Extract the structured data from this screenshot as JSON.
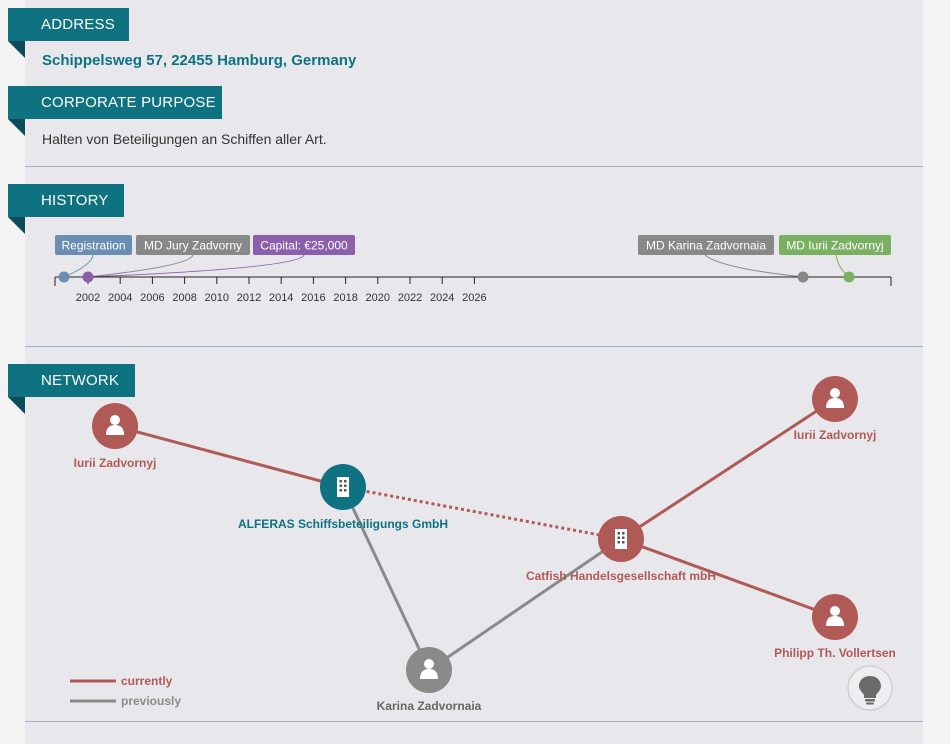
{
  "sections": {
    "address": {
      "label": "ADDRESS",
      "value": "Schippelsweg 57, 22455 Hamburg, Germany"
    },
    "purpose": {
      "label": "CORPORATE PURPOSE",
      "value": "Halten von Beteiligungen an Schiffen aller Art."
    },
    "history": {
      "label": "HISTORY"
    },
    "network": {
      "label": "NETWORK"
    }
  },
  "timeline": {
    "years": [
      "2002",
      "2004",
      "2006",
      "2008",
      "2010",
      "2012",
      "2014",
      "2016",
      "2018",
      "2020",
      "2022",
      "2024",
      "2026"
    ],
    "events": [
      {
        "label": "Registration",
        "color": "#6a8db4"
      },
      {
        "label": "MD Jury Zadvorny",
        "color": "#888888"
      },
      {
        "label": "Capital: €25,000",
        "color": "#8b5fac"
      },
      {
        "label": "MD Karina Zadvornaia",
        "color": "#888888"
      },
      {
        "label": "MD Iurii Zadvornyj",
        "color": "#7ab061"
      }
    ]
  },
  "network": {
    "nodes": [
      {
        "label": "Iurii Zadvornyj",
        "type": "person",
        "status": "current"
      },
      {
        "label": "ALFERAS Schiffsbeteiligungs GmbH",
        "type": "company",
        "status": "focus"
      },
      {
        "label": "Catfish Handelsgesellschaft mbH",
        "type": "company",
        "status": "current"
      },
      {
        "label": "Iurii Zadvornyj",
        "type": "person",
        "status": "current"
      },
      {
        "label": "Philipp Th. Vollertsen",
        "type": "person",
        "status": "current"
      },
      {
        "label": "Karina Zadvornaia",
        "type": "person",
        "status": "previous"
      }
    ],
    "legend": {
      "current": "currently",
      "previous": "previously"
    },
    "colors": {
      "current": "#b05a57",
      "previous": "#8a8a8a",
      "focus": "#0e7281"
    },
    "hint_icon": "lightbulb-icon"
  }
}
